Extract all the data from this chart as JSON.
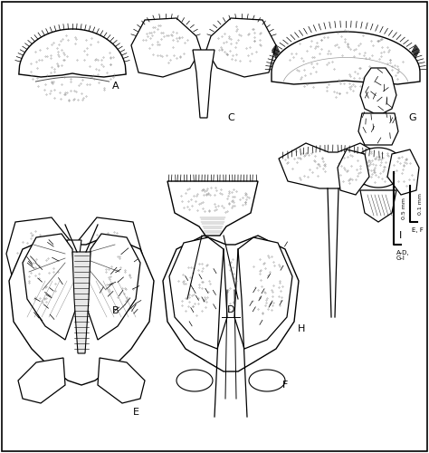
{
  "background_color": "#ffffff",
  "figure_width": 4.74,
  "figure_height": 5.0,
  "dpi": 100,
  "scale_bar_large": "0.5 mm",
  "scale_bar_small": "0.1 mm",
  "scale_label_ad": "A-D,",
  "scale_label_gi": "G-I",
  "scale_label_ef": "E, F",
  "line_color": "#000000",
  "hair_color": "#111111",
  "dot_color": "#999999",
  "lw_main": 1.0,
  "lw_thin": 0.5
}
